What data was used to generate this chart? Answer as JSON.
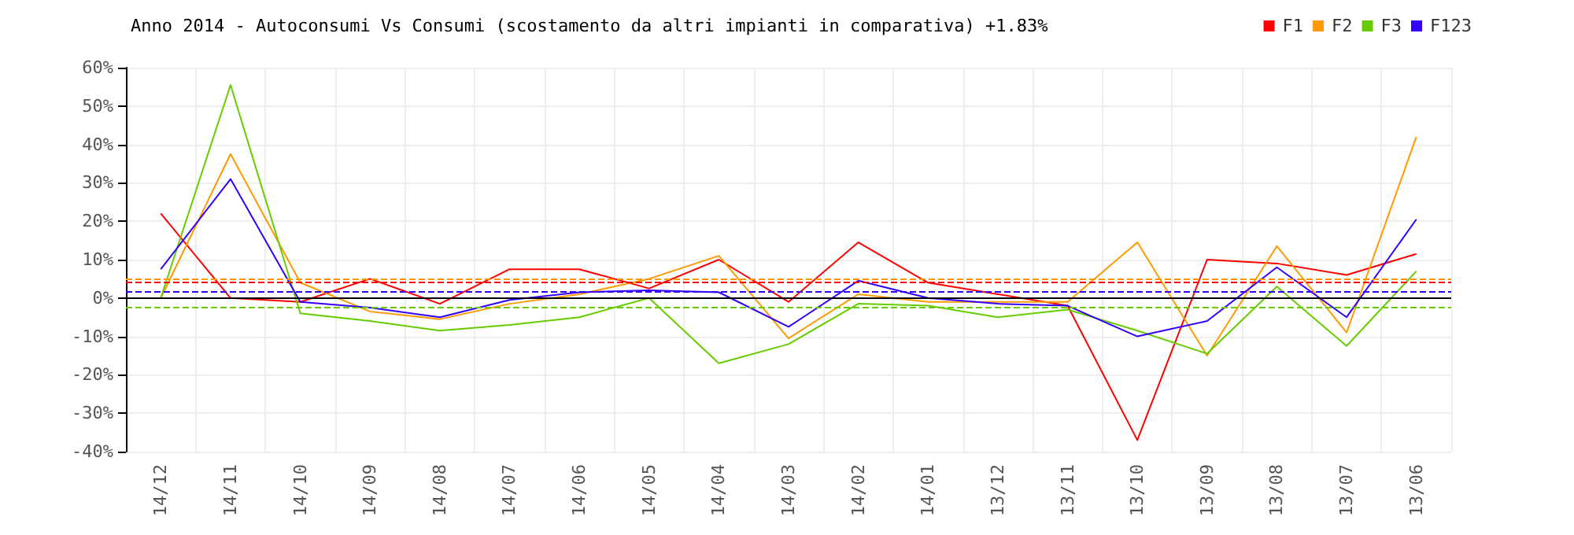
{
  "chart_data": {
    "type": "line",
    "title": "Anno 2014 - Autoconsumi Vs Consumi (scostamento da altri impianti in comparativa) +1.83%",
    "categories": [
      "14/12",
      "14/11",
      "14/10",
      "14/09",
      "14/08",
      "14/07",
      "14/06",
      "14/05",
      "14/04",
      "14/03",
      "14/02",
      "14/01",
      "13/12",
      "13/11",
      "13/10",
      "13/09",
      "13/08",
      "13/07",
      "13/06"
    ],
    "series": [
      {
        "name": "F1",
        "color": "#ff0000",
        "values": [
          22,
          0,
          -1,
          5,
          -1.5,
          7.5,
          7.5,
          2.5,
          10,
          -1,
          14.5,
          4,
          1,
          -2,
          -37,
          10,
          9,
          6,
          11.5
        ]
      },
      {
        "name": "F2",
        "color": "#ff9900",
        "values": [
          0,
          37.5,
          4,
          -3.5,
          -5.5,
          -1.5,
          1,
          5,
          11,
          -10.5,
          1,
          -1,
          -1,
          -1,
          14.5,
          -15,
          13.5,
          -9,
          42
        ]
      },
      {
        "name": "F3",
        "color": "#66cc00",
        "values": [
          0,
          55.5,
          -4,
          -6,
          -8.5,
          -7,
          -5,
          0,
          -17,
          -12,
          -1.5,
          -2,
          -5,
          -3,
          -8.5,
          -14.5,
          3,
          -12.5,
          7
        ]
      },
      {
        "name": "F123",
        "color": "#3300ff",
        "values": [
          7.5,
          31,
          -1,
          -2.5,
          -5,
          -0.5,
          1.5,
          2,
          1.5,
          -7.5,
          4.5,
          0,
          -1.5,
          -2,
          -10,
          -6,
          8,
          -5,
          20.5
        ]
      }
    ],
    "ylim": [
      -40,
      60
    ],
    "yticks": [
      {
        "value": -40,
        "label": "-40%"
      },
      {
        "value": -30,
        "label": "-30%"
      },
      {
        "value": -20,
        "label": "-20%"
      },
      {
        "value": -10,
        "label": "-10%"
      },
      {
        "value": 0,
        "label": "0%"
      },
      {
        "value": 10,
        "label": "10%"
      },
      {
        "value": 20,
        "label": "20%"
      },
      {
        "value": 30,
        "label": "30%"
      },
      {
        "value": 40,
        "label": "40%"
      },
      {
        "value": 50,
        "label": "50%"
      },
      {
        "value": 60,
        "label": "60%"
      }
    ],
    "ref_lines": [
      {
        "axis": "y",
        "value": 0,
        "color": "#000000",
        "line_style": "solid"
      },
      {
        "axis": "y",
        "value": 5,
        "color": "#ff9900",
        "line_style": "dashed"
      },
      {
        "axis": "y",
        "value": 4,
        "color": "#ff0000",
        "line_style": "dashed"
      },
      {
        "axis": "y",
        "value": 1.7,
        "color": "#3300ff",
        "line_style": "dashed"
      },
      {
        "axis": "y",
        "value": -2.5,
        "color": "#66cc00",
        "line_style": "dashed"
      }
    ],
    "grid": true,
    "legend": "top right",
    "marker": "none",
    "line_style": "solid"
  }
}
